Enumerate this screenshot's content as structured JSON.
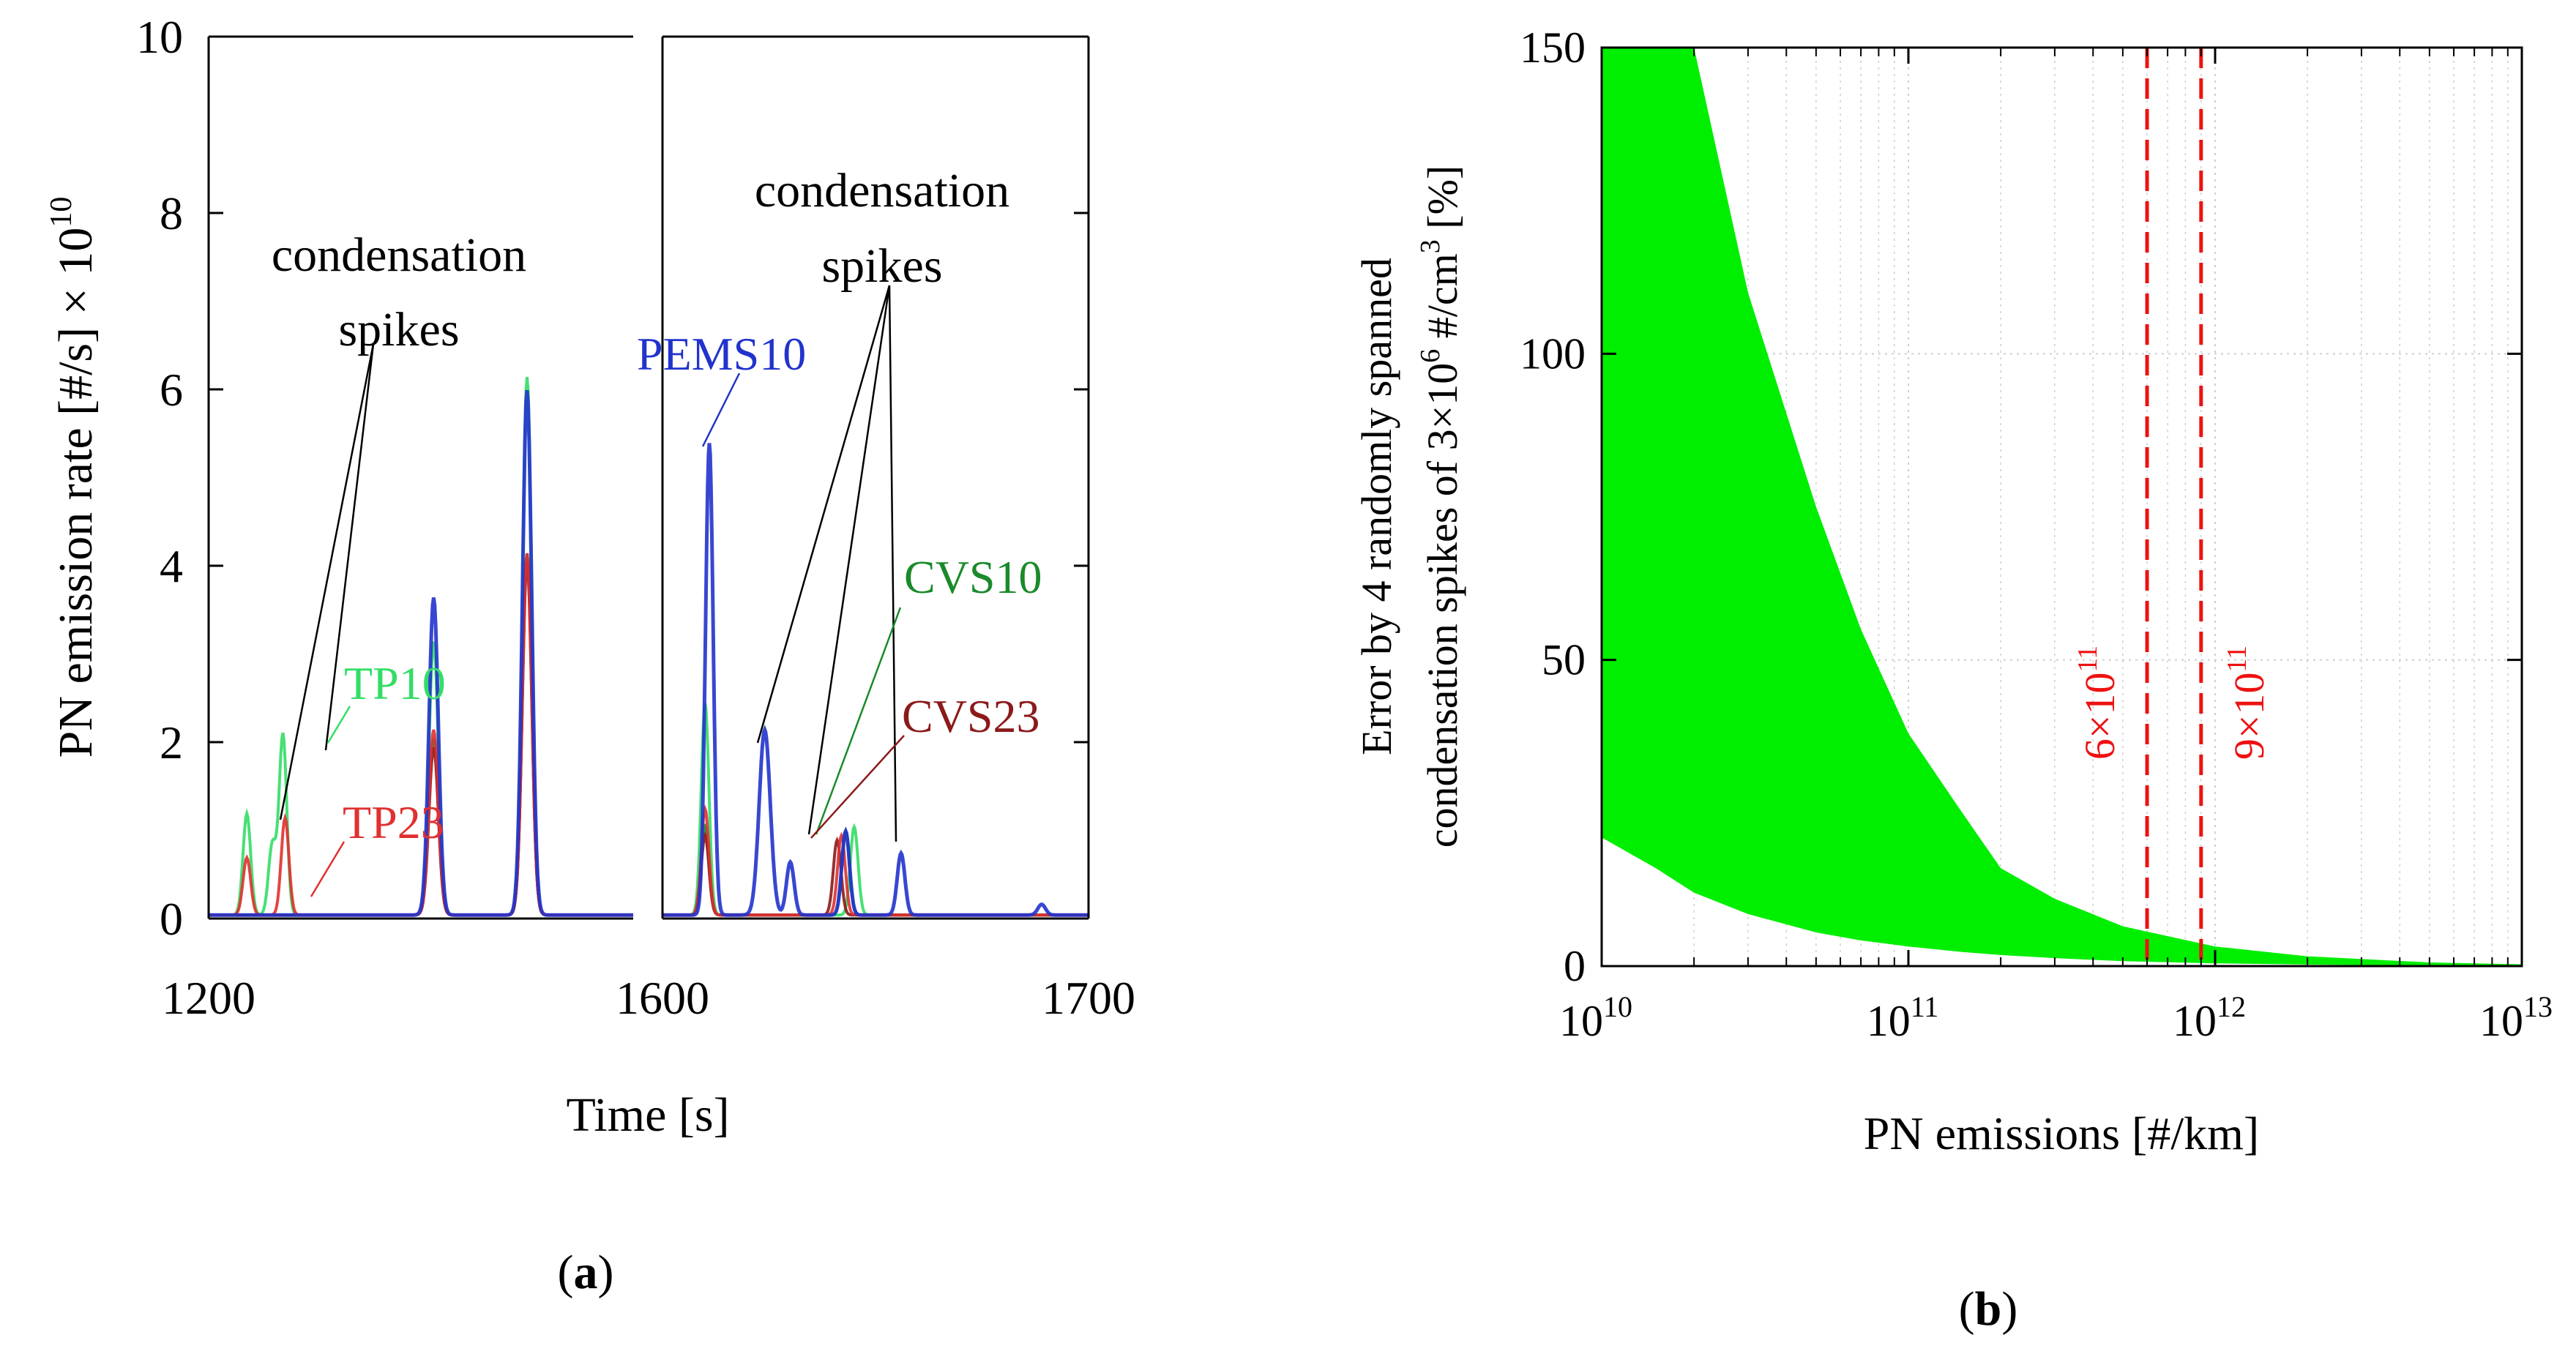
{
  "chart_data": [
    {
      "type": "line",
      "panel_label": "(a)",
      "title": "",
      "xlabel": "Time [s]",
      "ylabel": "PN emission rate [#/s] × 10",
      "ylabel_exponent": "10",
      "broken_x_axis": true,
      "segments": [
        {
          "xlim": [
            1200,
            1400
          ],
          "tick_labels": [
            "1200",
            ""
          ]
        },
        {
          "xlim": [
            1600,
            1700
          ],
          "tick_labels": [
            "1600",
            "1700"
          ]
        }
      ],
      "ylim": [
        0,
        10
      ],
      "yticks": [
        0,
        2,
        4,
        6,
        8,
        10
      ],
      "ytick_labels": [
        "0",
        "2",
        "4",
        "6",
        "8",
        "10"
      ],
      "series": [
        {
          "name": "TP10",
          "color": "#33dd66",
          "peaks": [
            [
              1218,
              1.15
            ],
            [
              1230,
              0.8
            ],
            [
              1235,
              2.05
            ],
            [
              1306,
              3.1
            ],
            [
              1350,
              6.1
            ],
            [
              1610,
              2.4
            ],
            [
              1645,
              1.0
            ]
          ]
        },
        {
          "name": "TP23",
          "color": "#e03030",
          "peaks": [
            [
              1218,
              0.65
            ],
            [
              1236,
              1.1
            ],
            [
              1306,
              2.1
            ],
            [
              1350,
              4.1
            ],
            [
              1610,
              1.2
            ],
            [
              1642,
              0.9
            ]
          ]
        },
        {
          "name": "PEMS10",
          "color": "#2233cc",
          "peaks": [
            [
              1306,
              3.6
            ],
            [
              1350,
              5.95
            ],
            [
              1611,
              5.35
            ],
            [
              1624,
              2.1
            ],
            [
              1630,
              0.6
            ],
            [
              1643,
              0.95
            ],
            [
              1656,
              0.7
            ],
            [
              1689,
              0.12
            ]
          ]
        },
        {
          "name": "CVS10",
          "color": "#1a8a2a",
          "peaks": [
            [
              1306,
              2.0
            ],
            [
              1350,
              4.1
            ],
            [
              1610,
              1.0
            ],
            [
              1643,
              0.95
            ]
          ]
        },
        {
          "name": "CVS23",
          "color": "#8b1a1a",
          "peaks": [
            [
              1306,
              1.9
            ],
            [
              1350,
              4.0
            ],
            [
              1610,
              0.9
            ],
            [
              1641,
              0.85
            ]
          ]
        }
      ],
      "annotations": [
        {
          "text": "condensation",
          "line": 1
        },
        {
          "text": "spikes",
          "line": 2
        },
        {
          "text": "condensation",
          "line": 1
        },
        {
          "text": "spikes",
          "line": 2
        }
      ],
      "labels": {
        "tp10": "TP10",
        "tp23": "TP23",
        "pems10": "PEMS10",
        "cvs10": "CVS10",
        "cvs23": "CVS23",
        "left_annotation_1": "condensation",
        "left_annotation_2": "spikes",
        "right_annotation_1": "condensation",
        "right_annotation_2": "spikes"
      }
    },
    {
      "type": "area",
      "panel_label": "(b)",
      "title": "",
      "xlabel": "PN emissions [#/km]",
      "ylabel_line1": "Error by 4 randomly spanned",
      "ylabel_line2": "condensation spikes of 3×10",
      "ylabel_line2_exponent": "6",
      "ylabel_line2_suffix": " #/cm",
      "ylabel_line2_suffix_exponent": "3",
      "ylabel_line2_end": " [%]",
      "xscale": "log",
      "xlim": [
        10000000000.0,
        10000000000000.0
      ],
      "xtick_base": "10",
      "xtick_exponents": [
        "10",
        "11",
        "12",
        "13"
      ],
      "ylim": [
        0,
        150
      ],
      "yticks": [
        0,
        50,
        100,
        150
      ],
      "ytick_labels": [
        "0",
        "50",
        "100",
        "150"
      ],
      "grid": true,
      "band": {
        "color": "#00ee00",
        "x": [
          10000000000.0,
          15000000000.0,
          20000000000.0,
          30000000000.0,
          50000000000.0,
          70000000000.0,
          100000000000.0,
          150000000000.0,
          200000000000.0,
          300000000000.0,
          500000000000.0,
          1000000000000.0,
          2000000000000.0,
          5000000000000.0,
          10000000000000.0
        ],
        "upper": [
          150,
          150,
          150,
          110,
          75,
          55,
          38,
          25,
          16,
          11,
          6.5,
          3.2,
          1.6,
          0.6,
          0.3
        ],
        "lower": [
          21,
          16,
          12,
          8.5,
          5.5,
          4.2,
          3.2,
          2.3,
          1.8,
          1.3,
          0.8,
          0.45,
          0.25,
          0.1,
          0.05
        ]
      },
      "vlines": [
        {
          "x": 600000000000.0,
          "label_base": "6×10",
          "label_exp": "11",
          "color": "#ee1111"
        },
        {
          "x": 900000000000.0,
          "label_base": "9×10",
          "label_exp": "11",
          "color": "#ee1111"
        }
      ]
    }
  ]
}
